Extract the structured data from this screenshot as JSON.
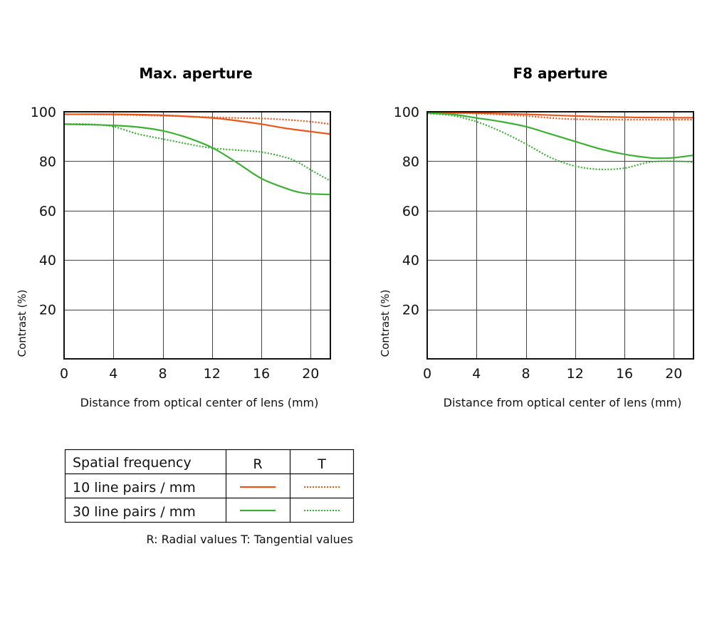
{
  "colors": {
    "r10": "#e8561c",
    "r30": "#3db034",
    "grid": "#444444",
    "axis": "#111111"
  },
  "chart_data": [
    {
      "type": "line",
      "title": "Max. aperture",
      "xlabel": "Distance from optical center of lens (mm)",
      "ylabel": "Contrast (%)",
      "xlim": [
        0,
        21.6
      ],
      "ylim": [
        0,
        100
      ],
      "xticks": [
        "0",
        "4",
        "8",
        "12",
        "16",
        "20"
      ],
      "yticks": [
        "20",
        "40",
        "60",
        "80",
        "100"
      ],
      "grid": true,
      "series": [
        {
          "name": "10 line pairs / mm R",
          "color": "#e8561c",
          "style": "solid",
          "x": [
            0,
            4,
            8,
            12,
            14,
            16,
            18,
            20,
            21.6
          ],
          "y": [
            99,
            99,
            98.6,
            97.5,
            96.4,
            95,
            93.3,
            92,
            91
          ]
        },
        {
          "name": "10 line pairs / mm T",
          "color": "#e8561c",
          "style": "dotted",
          "x": [
            0,
            4,
            8,
            12,
            14,
            16,
            18,
            20,
            21.6
          ],
          "y": [
            99,
            98.8,
            98.4,
            97.8,
            97.5,
            97.3,
            96.8,
            96,
            95
          ]
        },
        {
          "name": "30 line pairs / mm R",
          "color": "#3db034",
          "style": "solid",
          "x": [
            0,
            4,
            6,
            8,
            10,
            12,
            14,
            16,
            18,
            19,
            20,
            21.6
          ],
          "y": [
            95,
            94.5,
            93.8,
            92.3,
            89.5,
            85.5,
            79.5,
            73,
            69,
            67.5,
            66.8,
            66.5
          ]
        },
        {
          "name": "30 line pairs / mm T",
          "color": "#3db034",
          "style": "dotted",
          "x": [
            0,
            2,
            4,
            6,
            8,
            10,
            12,
            14,
            16,
            18,
            19,
            20,
            21.6
          ],
          "y": [
            95,
            95,
            94,
            91,
            89,
            87,
            85.3,
            84.5,
            83.7,
            81.5,
            79.5,
            76.5,
            72
          ]
        }
      ]
    },
    {
      "type": "line",
      "title": "F8 aperture",
      "xlabel": "Distance from optical center of lens (mm)",
      "ylabel": "Contrast (%)",
      "xlim": [
        0,
        21.6
      ],
      "ylim": [
        0,
        100
      ],
      "xticks": [
        "0",
        "4",
        "8",
        "12",
        "16",
        "20"
      ],
      "yticks": [
        "20",
        "40",
        "60",
        "80",
        "100"
      ],
      "grid": true,
      "series": [
        {
          "name": "10 line pairs / mm R",
          "color": "#e8561c",
          "style": "solid",
          "x": [
            0,
            4,
            8,
            12,
            16,
            20,
            21.6
          ],
          "y": [
            99.6,
            99.5,
            99,
            98.3,
            97.8,
            97.6,
            97.6
          ]
        },
        {
          "name": "10 line pairs / mm T",
          "color": "#e8561c",
          "style": "dotted",
          "x": [
            0,
            4,
            8,
            10,
            12,
            16,
            20,
            21.6
          ],
          "y": [
            99.6,
            99.3,
            98.3,
            97.5,
            97,
            96.8,
            96.8,
            96.8
          ]
        },
        {
          "name": "30 line pairs / mm R",
          "color": "#3db034",
          "style": "solid",
          "x": [
            0,
            2,
            4,
            6,
            8,
            10,
            12,
            14,
            16,
            18,
            19,
            20,
            21.6
          ],
          "y": [
            99.5,
            99,
            97.5,
            96,
            94,
            91,
            88,
            85,
            82.8,
            81.4,
            81.2,
            81.4,
            82.4
          ]
        },
        {
          "name": "30 line pairs / mm T",
          "color": "#3db034",
          "style": "dotted",
          "x": [
            0,
            2,
            4,
            6,
            8,
            10,
            12,
            14,
            16,
            18,
            20,
            21.6
          ],
          "y": [
            99.3,
            98.5,
            96,
            92,
            87,
            81.5,
            78,
            76.7,
            77.2,
            79.6,
            80,
            79.6
          ]
        }
      ]
    }
  ],
  "legend": {
    "header": {
      "label": "Spatial frequency",
      "r": "R",
      "t": "T"
    },
    "rows": [
      {
        "label": "10 line pairs / mm",
        "color": "#e8561c"
      },
      {
        "label": "30 line pairs / mm",
        "color": "#3db034"
      }
    ],
    "note": "R: Radial values  T: Tangential values"
  }
}
